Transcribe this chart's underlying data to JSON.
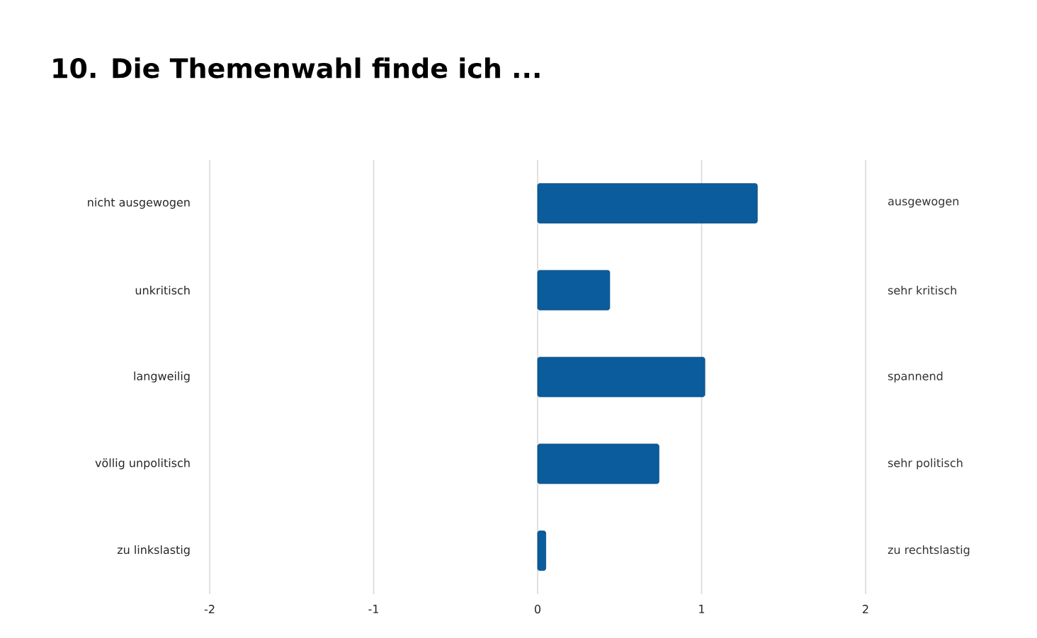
{
  "chart_data": {
    "type": "bar",
    "orientation": "horizontal",
    "title": "10. Die Themenwahl finde ich ...",
    "categories": [
      "nicht ausgewogen",
      "unkritisch",
      "langweilig",
      "völlig unpolitisch",
      "zu linkslastig"
    ],
    "y2_categories": [
      "ausgewogen",
      "sehr kritisch",
      "spannend",
      "sehr politisch",
      "zu rechtslastig"
    ],
    "values": [
      1.34,
      0.44,
      1.02,
      0.74,
      0.05
    ],
    "color": "#0a5c9c",
    "xlim": [
      -2,
      2
    ],
    "xticks": [
      -2,
      -1,
      0,
      1,
      2
    ],
    "grid": "x"
  }
}
